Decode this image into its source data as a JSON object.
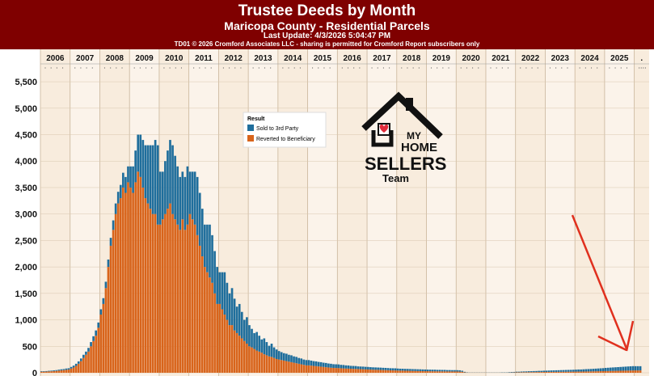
{
  "header": {
    "title": "Trustee Deeds by Month",
    "subtitle": "Maricopa County - Residential Parcels",
    "last_update": "Last Update: 4/3/2026 5:04:47 PM",
    "copyright": "TD01 © 2026 Cromford Associates LLC - sharing is permitted for Cromford Report subscribers only"
  },
  "colors": {
    "header_bg": "#7f0000",
    "sold": "#1f6e9c",
    "reverted": "#d8641b",
    "year_band": "#f8ecdd",
    "year_band_alt": "#fbf3ea"
  },
  "logo": {
    "line1": "MY",
    "line2": "HOME",
    "line3": "SELLERS",
    "line4": "Team"
  },
  "annotation": {
    "type": "arrow",
    "color": "#e0301e"
  },
  "chart_data": {
    "type": "bar",
    "stacked": true,
    "title": "Trustee Deeds by Month",
    "subtitle": "Maricopa County - Residential Parcels",
    "xlabel": "",
    "ylabel": "",
    "ylim": [
      0,
      5700
    ],
    "yticks": [
      0,
      500,
      1000,
      1500,
      2000,
      2500,
      3000,
      3500,
      4000,
      4500,
      5000,
      5500
    ],
    "ytick_labels": [
      "0",
      "500",
      "1,000",
      "1,500",
      "2,000",
      "2,500",
      "3,000",
      "3,500",
      "4,000",
      "4,500",
      "5,000",
      "5,500"
    ],
    "x_year_labels": [
      "2006",
      "2007",
      "2008",
      "2009",
      "2010",
      "2011",
      "2012",
      "2013",
      "2014",
      "2015",
      "2016",
      "2017",
      "2018",
      "2019",
      "2020",
      "2021",
      "2022",
      "2023",
      "2024",
      "2025",
      "."
    ],
    "legend": {
      "title": "Result",
      "position": "top-center"
    },
    "grid": true,
    "series": [
      {
        "name": "Sold to 3rd Party",
        "annual_monthly_estimates": {
          "2006": [
            10,
            10,
            10,
            12,
            12,
            15,
            15,
            18,
            20,
            20,
            25,
            25
          ],
          "2007": [
            30,
            35,
            40,
            45,
            50,
            60,
            60,
            70,
            80,
            90,
            100,
            100
          ],
          "2008": [
            100,
            110,
            120,
            140,
            150,
            180,
            200,
            220,
            250,
            280,
            300,
            300
          ],
          "2009": [
            400,
            500,
            600,
            700,
            800,
            900,
            1000,
            1100,
            1200,
            1300,
            1400,
            1500
          ],
          "2010": [
            1000,
            900,
            1000,
            1100,
            1200,
            1300,
            1200,
            1100,
            1000,
            900,
            1000,
            1100
          ],
          "2011": [
            800,
            900,
            1000,
            1100,
            1000,
            900,
            800,
            900,
            1000,
            900,
            800,
            700
          ],
          "2012": [
            600,
            700,
            800,
            700,
            600,
            700,
            600,
            500,
            600,
            500,
            400,
            500
          ],
          "2013": [
            400,
            350,
            300,
            350,
            300,
            250,
            300,
            250,
            200,
            250,
            200,
            180
          ],
          "2014": [
            160,
            150,
            140,
            140,
            130,
            130,
            120,
            120,
            110,
            110,
            100,
            100
          ],
          "2015": [
            100,
            95,
            90,
            90,
            85,
            85,
            80,
            80,
            75,
            75,
            70,
            70
          ],
          "2016": [
            70,
            65,
            65,
            60,
            60,
            55,
            55,
            55,
            50,
            50,
            50,
            48
          ],
          "2017": [
            48,
            46,
            45,
            45,
            44,
            43,
            42,
            42,
            41,
            40,
            40,
            40
          ],
          "2018": [
            38,
            37,
            36,
            36,
            35,
            35,
            34,
            34,
            33,
            33,
            32,
            32
          ],
          "2019": [
            30,
            30,
            30,
            30,
            28,
            28,
            28,
            28,
            26,
            26,
            26,
            26
          ],
          "2020": [
            25,
            25,
            20,
            10,
            5,
            3,
            3,
            3,
            3,
            3,
            3,
            3
          ],
          "2021": [
            3,
            3,
            3,
            3,
            3,
            3,
            5,
            5,
            5,
            8,
            10,
            10
          ],
          "2022": [
            12,
            12,
            14,
            15,
            16,
            18,
            18,
            20,
            20,
            22,
            22,
            24
          ],
          "2023": [
            25,
            26,
            28,
            28,
            30,
            30,
            32,
            32,
            34,
            34,
            35,
            36
          ],
          "2024": [
            38,
            40,
            40,
            42,
            44,
            45,
            46,
            48,
            50,
            52,
            54,
            56
          ],
          "2025": [
            60,
            62,
            64,
            66,
            68,
            70,
            72,
            74,
            76,
            78,
            80,
            82
          ],
          "2026": [
            80,
            80,
            80
          ]
        }
      },
      {
        "name": "Reverted to Beneficiary",
        "annual_monthly_estimates": {
          "2006": [
            20,
            20,
            22,
            25,
            28,
            30,
            35,
            40,
            45,
            50,
            55,
            60
          ],
          "2007": [
            80,
            100,
            130,
            170,
            220,
            280,
            340,
            400,
            500,
            600,
            700,
            850
          ],
          "2008": [
            1100,
            1300,
            1600,
            2000,
            2400,
            2700,
            3000,
            3200,
            3300,
            3500,
            3400,
            3600
          ],
          "2009": [
            3500,
            3400,
            3600,
            3800,
            3700,
            3500,
            3300,
            3200,
            3100,
            3000,
            3000,
            2800
          ],
          "2010": [
            2800,
            2900,
            3000,
            3100,
            3200,
            3000,
            2900,
            2800,
            2700,
            2900,
            2700,
            2800
          ],
          "2011": [
            3000,
            2900,
            2800,
            2600,
            2400,
            2200,
            2000,
            1900,
            1800,
            1700,
            1500,
            1300
          ],
          "2012": [
            1300,
            1200,
            1100,
            1000,
            900,
            900,
            800,
            750,
            700,
            650,
            600,
            550
          ],
          "2013": [
            500,
            480,
            450,
            420,
            400,
            380,
            350,
            330,
            310,
            300,
            280,
            260
          ],
          "2014": [
            250,
            240,
            230,
            220,
            210,
            200,
            190,
            180,
            170,
            160,
            150,
            140
          ],
          "2015": [
            140,
            135,
            130,
            125,
            120,
            115,
            110,
            105,
            100,
            95,
            92,
            90
          ],
          "2016": [
            88,
            85,
            82,
            80,
            78,
            76,
            74,
            72,
            70,
            68,
            66,
            64
          ],
          "2017": [
            62,
            60,
            58,
            56,
            55,
            54,
            52,
            50,
            48,
            46,
            45,
            44
          ],
          "2018": [
            42,
            40,
            40,
            38,
            38,
            36,
            35,
            34,
            33,
            32,
            31,
            30
          ],
          "2019": [
            30,
            29,
            28,
            28,
            27,
            27,
            26,
            26,
            25,
            25,
            24,
            24
          ],
          "2020": [
            24,
            22,
            18,
            8,
            4,
            2,
            2,
            2,
            2,
            2,
            2,
            2
          ],
          "2021": [
            2,
            2,
            2,
            2,
            2,
            2,
            3,
            3,
            3,
            4,
            5,
            6
          ],
          "2022": [
            8,
            8,
            9,
            10,
            10,
            11,
            12,
            12,
            13,
            14,
            14,
            15
          ],
          "2023": [
            15,
            16,
            16,
            17,
            17,
            18,
            18,
            19,
            19,
            20,
            20,
            21
          ],
          "2024": [
            21,
            22,
            22,
            23,
            24,
            25,
            26,
            27,
            28,
            29,
            30,
            31
          ],
          "2025": [
            32,
            33,
            34,
            35,
            36,
            37,
            38,
            39,
            40,
            41,
            42,
            43
          ],
          "2026": [
            44,
            44,
            44
          ]
        }
      }
    ]
  }
}
